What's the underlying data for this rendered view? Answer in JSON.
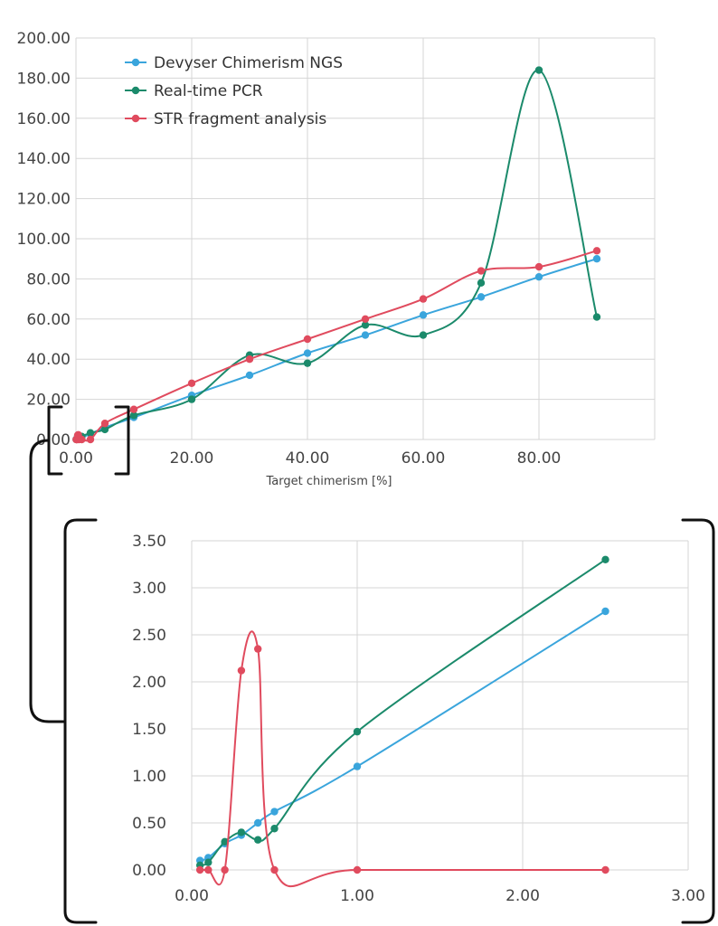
{
  "chart_data": [
    {
      "type": "line",
      "title": "",
      "xlabel": "Target chimerism [%]",
      "ylabel": "",
      "xlim": [
        0,
        100
      ],
      "ylim": [
        0,
        200
      ],
      "x_ticks": [
        "0.00",
        "20.00",
        "40.00",
        "60.00",
        "80.00"
      ],
      "y_ticks": [
        "0.00",
        "20.00",
        "40.00",
        "60.00",
        "80.00",
        "100.00",
        "120.00",
        "140.00",
        "160.00",
        "180.00",
        "200.00"
      ],
      "grid": true,
      "legend": "top-left",
      "series": [
        {
          "name": "Devyser Chimerism NGS",
          "color": "#3aa5dc",
          "points": [
            [
              0.05,
              0.1
            ],
            [
              0.1,
              0.13
            ],
            [
              0.2,
              0.28
            ],
            [
              0.3,
              0.37
            ],
            [
              0.4,
              0.5
            ],
            [
              0.5,
              0.62
            ],
            [
              1,
              1.1
            ],
            [
              2.5,
              2.75
            ],
            [
              5,
              6
            ],
            [
              10,
              11
            ],
            [
              20,
              22
            ],
            [
              30,
              32
            ],
            [
              40,
              43
            ],
            [
              50,
              52
            ],
            [
              60,
              62
            ],
            [
              70,
              71
            ],
            [
              80,
              81
            ],
            [
              90,
              90
            ]
          ]
        },
        {
          "name": "Real-time PCR",
          "color": "#1b8a6b",
          "points": [
            [
              0.05,
              0.05
            ],
            [
              0.1,
              0.08
            ],
            [
              0.2,
              0.3
            ],
            [
              0.3,
              0.4
            ],
            [
              0.4,
              0.32
            ],
            [
              0.5,
              0.44
            ],
            [
              1,
              1.47
            ],
            [
              2.5,
              3.3
            ],
            [
              5,
              5
            ],
            [
              10,
              12
            ],
            [
              20,
              20
            ],
            [
              30,
              42
            ],
            [
              40,
              38
            ],
            [
              50,
              57
            ],
            [
              60,
              52
            ],
            [
              70,
              78
            ],
            [
              80,
              184
            ],
            [
              90,
              61
            ]
          ]
        },
        {
          "name": "STR fragment analysis",
          "color": "#e04b5e",
          "points": [
            [
              0.05,
              0
            ],
            [
              0.1,
              0
            ],
            [
              0.2,
              0
            ],
            [
              0.3,
              2.12
            ],
            [
              0.4,
              2.35
            ],
            [
              0.5,
              0
            ],
            [
              1,
              0
            ],
            [
              2.5,
              0
            ],
            [
              5,
              8
            ],
            [
              10,
              15
            ],
            [
              20,
              28
            ],
            [
              30,
              40
            ],
            [
              40,
              50
            ],
            [
              50,
              60
            ],
            [
              60,
              70
            ],
            [
              70,
              84
            ],
            [
              80,
              86
            ],
            [
              90,
              94
            ]
          ]
        }
      ]
    },
    {
      "type": "line",
      "title": "",
      "xlabel": "",
      "ylabel": "",
      "xlim": [
        0,
        3
      ],
      "ylim": [
        0,
        3.5
      ],
      "x_ticks": [
        "0.00",
        "1.00",
        "2.00",
        "3.00"
      ],
      "y_ticks": [
        "0.00",
        "0.50",
        "1.00",
        "1.50",
        "2.00",
        "2.50",
        "3.00",
        "3.50"
      ],
      "grid": true,
      "legend": "none",
      "series": [
        {
          "name": "Devyser Chimerism NGS",
          "color": "#3aa5dc",
          "points": [
            [
              0.05,
              0.1
            ],
            [
              0.1,
              0.13
            ],
            [
              0.2,
              0.28
            ],
            [
              0.3,
              0.37
            ],
            [
              0.4,
              0.5
            ],
            [
              0.5,
              0.62
            ],
            [
              1,
              1.1
            ],
            [
              2.5,
              2.75
            ]
          ]
        },
        {
          "name": "Real-time PCR",
          "color": "#1b8a6b",
          "points": [
            [
              0.05,
              0.05
            ],
            [
              0.1,
              0.08
            ],
            [
              0.2,
              0.3
            ],
            [
              0.3,
              0.4
            ],
            [
              0.4,
              0.32
            ],
            [
              0.5,
              0.44
            ],
            [
              1,
              1.47
            ],
            [
              2.5,
              3.3
            ]
          ]
        },
        {
          "name": "STR fragment analysis",
          "color": "#e04b5e",
          "points": [
            [
              0.05,
              0
            ],
            [
              0.1,
              0
            ],
            [
              0.2,
              0
            ],
            [
              0.3,
              2.12
            ],
            [
              0.4,
              2.35
            ],
            [
              0.5,
              0
            ],
            [
              1,
              0
            ],
            [
              2.5,
              0
            ]
          ]
        }
      ]
    }
  ]
}
